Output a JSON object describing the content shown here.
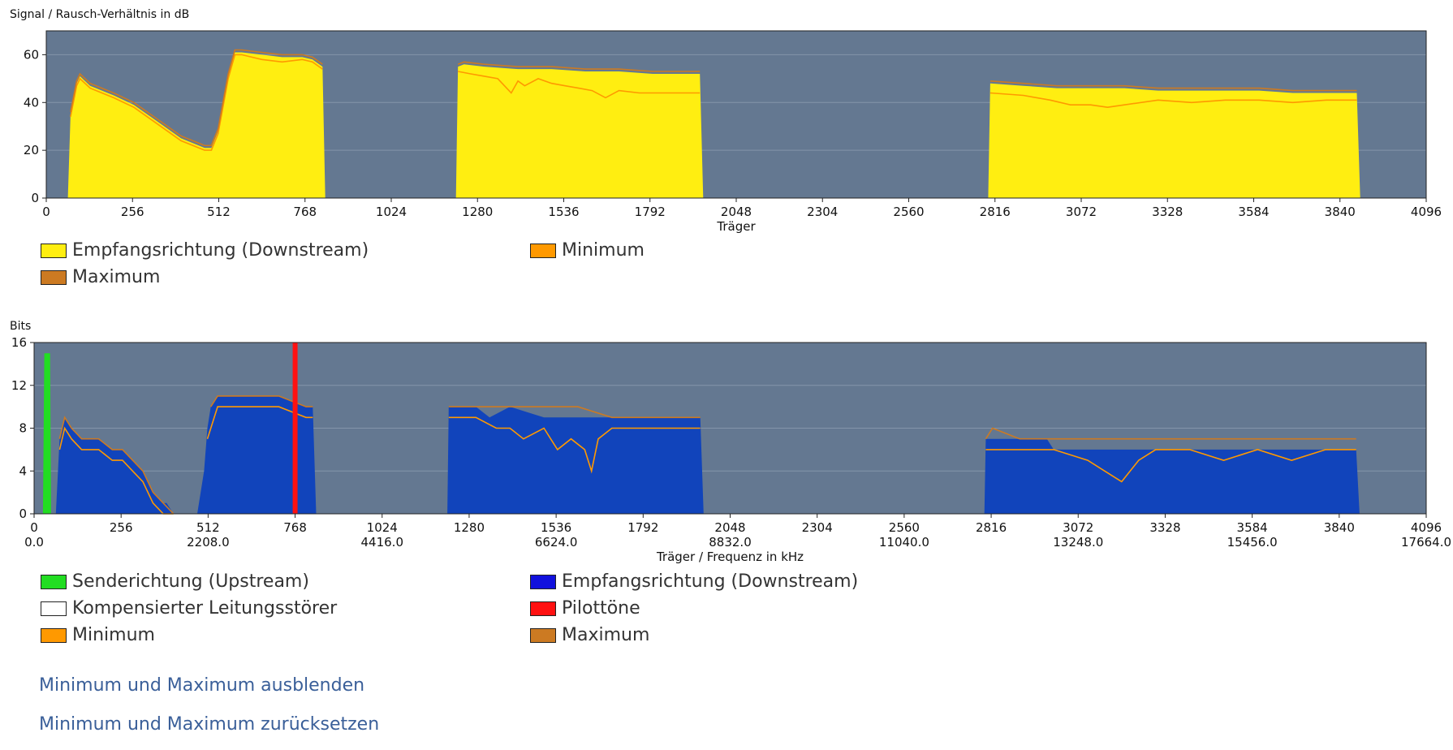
{
  "chart_data": [
    {
      "type": "area",
      "ylabel": "Signal / Rausch-Verhältnis in dB",
      "xlabel": "Träger",
      "xlim": [
        0,
        4096
      ],
      "ylim": [
        0,
        70
      ],
      "x_ticks": [
        0,
        256,
        512,
        768,
        1024,
        1280,
        1536,
        1792,
        2048,
        2304,
        2560,
        2816,
        3072,
        3328,
        3584,
        3840,
        4096
      ],
      "y_ticks": [
        0,
        20,
        40,
        60
      ],
      "grid": true,
      "series": [
        {
          "name": "Empfangsrichtung (Downstream)",
          "color": "#ffee11",
          "segments": [
            {
              "x": [
                64,
                72,
                90,
                100,
                130,
                200,
                260,
                330,
                400,
                470,
                490,
                510,
                540,
                560,
                580,
                640,
                700,
                760,
                790,
                820,
                828
              ],
              "y": [
                0,
                35,
                48,
                51,
                47,
                43,
                39,
                32,
                25,
                21,
                21,
                28,
                51,
                61,
                61,
                60,
                59,
                59,
                58,
                55,
                0
              ]
            },
            {
              "x": [
                1216,
                1222,
                1240,
                1300,
                1400,
                1500,
                1600,
                1700,
                1800,
                1940,
                1950
              ],
              "y": [
                0,
                55,
                56,
                55,
                54,
                54,
                53,
                53,
                52,
                52,
                0
              ]
            },
            {
              "x": [
                2796,
                2802,
                2900,
                3000,
                3100,
                3200,
                3300,
                3400,
                3500,
                3600,
                3700,
                3800,
                3890,
                3900
              ],
              "y": [
                0,
                48,
                47,
                46,
                46,
                46,
                45,
                45,
                45,
                45,
                44,
                44,
                44,
                0
              ]
            }
          ]
        },
        {
          "name": "Minimum",
          "color": "#ff9900",
          "segments": [
            {
              "x": [
                72,
                90,
                100,
                130,
                200,
                260,
                330,
                400,
                470,
                490,
                510,
                540,
                560,
                580,
                640,
                700,
                760,
                790,
                820
              ],
              "y": [
                34,
                47,
                50,
                46,
                42,
                38,
                31,
                24,
                20,
                20,
                27,
                50,
                60,
                60,
                58,
                57,
                58,
                57,
                54
              ]
            },
            {
              "x": [
                1222,
                1260,
                1300,
                1340,
                1380,
                1400,
                1420,
                1460,
                1500,
                1540,
                1580,
                1620,
                1660,
                1700,
                1760,
                1800,
                1940
              ],
              "y": [
                53,
                52,
                51,
                50,
                44,
                49,
                47,
                50,
                48,
                47,
                46,
                45,
                42,
                45,
                44,
                44,
                44
              ]
            },
            {
              "x": [
                2802,
                2900,
                2980,
                3040,
                3100,
                3150,
                3200,
                3300,
                3400,
                3500,
                3600,
                3700,
                3800,
                3890
              ],
              "y": [
                44,
                43,
                41,
                39,
                39,
                38,
                39,
                41,
                40,
                41,
                41,
                40,
                41,
                41
              ]
            }
          ]
        },
        {
          "name": "Maximum",
          "color": "#cc7a22",
          "segments": [
            {
              "x": [
                72,
                90,
                100,
                130,
                200,
                260,
                330,
                400,
                470,
                490,
                510,
                540,
                560,
                580,
                640,
                700,
                760,
                790,
                820
              ],
              "y": [
                36,
                49,
                52,
                48,
                44,
                40,
                33,
                26,
                22,
                22,
                29,
                52,
                62,
                62,
                61,
                60,
                60,
                59,
                56
              ]
            },
            {
              "x": [
                1222,
                1240,
                1300,
                1400,
                1500,
                1600,
                1700,
                1800,
                1940
              ],
              "y": [
                56,
                57,
                56,
                55,
                55,
                54,
                54,
                53,
                53
              ]
            },
            {
              "x": [
                2802,
                2900,
                3000,
                3100,
                3200,
                3300,
                3400,
                3500,
                3600,
                3700,
                3800,
                3890
              ],
              "y": [
                49,
                48,
                47,
                47,
                47,
                46,
                46,
                46,
                46,
                45,
                45,
                45
              ]
            }
          ]
        }
      ],
      "legend": [
        {
          "label": "Empfangsrichtung (Downstream)",
          "color": "#ffee11"
        },
        {
          "label": "Minimum",
          "color": "#ff9900"
        },
        {
          "label": "Maximum",
          "color": "#cc7a22"
        }
      ]
    },
    {
      "type": "area",
      "ylabel": "Bits",
      "xlabel": "Träger / Frequenz in kHz",
      "xlim": [
        0,
        4096
      ],
      "ylim": [
        0,
        16
      ],
      "x_ticks": [
        0,
        256,
        512,
        768,
        1024,
        1280,
        1536,
        1792,
        2048,
        2304,
        2560,
        2816,
        3072,
        3328,
        3584,
        3840,
        4096
      ],
      "x_freq_labels": [
        {
          "x": 0,
          "label": "0.0"
        },
        {
          "x": 512,
          "label": "2208.0"
        },
        {
          "x": 1024,
          "label": "4416.0"
        },
        {
          "x": 1536,
          "label": "6624.0"
        },
        {
          "x": 2048,
          "label": "8832.0"
        },
        {
          "x": 2560,
          "label": "11040.0"
        },
        {
          "x": 3072,
          "label": "13248.0"
        },
        {
          "x": 3584,
          "label": "15456.0"
        },
        {
          "x": 4096,
          "label": "17664.0"
        }
      ],
      "y_ticks": [
        0,
        4,
        8,
        12,
        16
      ],
      "grid": true,
      "series": [
        {
          "name": "Senderichtung (Upstream)",
          "color": "#22dd22",
          "segments": [
            {
              "x": [
                26,
                30,
                47,
                50
              ],
              "y": [
                0,
                15,
                15,
                0
              ]
            }
          ]
        },
        {
          "name": "Empfangsrichtung (Downstream)",
          "color": "#1144bb",
          "segments": [
            {
              "x": [
                64,
                75,
                90,
                110,
                140,
                190,
                230,
                260,
                290,
                320,
                350,
                380,
                390,
                410,
                420
              ],
              "y": [
                0,
                7,
                9,
                8,
                7,
                7,
                6,
                6,
                5,
                4,
                2,
                1,
                1,
                0,
                0
              ]
            },
            {
              "x": [
                480,
                500,
                510,
                520,
                540,
                580,
                660,
                720,
                800,
                820,
                830
              ],
              "y": [
                0,
                4,
                8,
                10,
                11,
                11,
                11,
                11,
                10,
                10,
                0
              ]
            },
            {
              "x": [
                1216,
                1220,
                1250,
                1300,
                1340,
                1400,
                1500,
                1600,
                1700,
                1760,
                1800,
                1960,
                1970
              ],
              "y": [
                0,
                10,
                10,
                10,
                9,
                10,
                9,
                9,
                9,
                9,
                9,
                9,
                0
              ]
            },
            {
              "x": [
                2796,
                2800,
                2820,
                2900,
                2980,
                3000,
                3100,
                3200,
                3300,
                3400,
                3500,
                3600,
                3700,
                3800,
                3890,
                3900
              ],
              "y": [
                0,
                7,
                7,
                7,
                7,
                6,
                6,
                6,
                6,
                6,
                6,
                6,
                6,
                6,
                6,
                0
              ]
            }
          ]
        },
        {
          "name": "Minimum",
          "color": "#ff9900",
          "segments": [
            {
              "x": [
                75,
                90,
                110,
                140,
                190,
                230,
                260,
                290,
                320,
                350,
                380,
                410
              ],
              "y": [
                6,
                8,
                7,
                6,
                6,
                5,
                5,
                4,
                3,
                1,
                0,
                0
              ]
            },
            {
              "x": [
                510,
                540,
                580,
                660,
                720,
                800,
                820
              ],
              "y": [
                7,
                10,
                10,
                10,
                10,
                9,
                9
              ]
            },
            {
              "x": [
                1220,
                1300,
                1360,
                1400,
                1440,
                1500,
                1540,
                1580,
                1620,
                1640,
                1660,
                1700,
                1800,
                1960
              ],
              "y": [
                9,
                9,
                8,
                8,
                7,
                8,
                6,
                7,
                6,
                4,
                7,
                8,
                8,
                8
              ]
            },
            {
              "x": [
                2800,
                2900,
                3000,
                3100,
                3150,
                3200,
                3250,
                3300,
                3400,
                3500,
                3600,
                3700,
                3800,
                3890
              ],
              "y": [
                6,
                6,
                6,
                5,
                4,
                3,
                5,
                6,
                6,
                5,
                6,
                5,
                6,
                6
              ]
            }
          ]
        },
        {
          "name": "Maximum",
          "color": "#cc7a22",
          "segments": [
            {
              "x": [
                75,
                90,
                110,
                140,
                190,
                230,
                260,
                290,
                320,
                350,
                380,
                410
              ],
              "y": [
                7,
                9,
                8,
                7,
                7,
                6,
                6,
                5,
                4,
                2,
                1,
                0
              ]
            },
            {
              "x": [
                520,
                540,
                580,
                660,
                720,
                800,
                820
              ],
              "y": [
                10,
                11,
                11,
                11,
                11,
                10,
                10
              ]
            },
            {
              "x": [
                1220,
                1300,
                1400,
                1500,
                1600,
                1700,
                1800,
                1960
              ],
              "y": [
                10,
                10,
                10,
                10,
                10,
                9,
                9,
                9
              ]
            },
            {
              "x": [
                2800,
                2820,
                2900,
                3000,
                3100,
                3200,
                3300,
                3400,
                3500,
                3600,
                3700,
                3800,
                3890
              ],
              "y": [
                7,
                8,
                7,
                7,
                7,
                7,
                7,
                7,
                7,
                7,
                7,
                7,
                7
              ]
            }
          ]
        },
        {
          "name": "Pilottöne",
          "color": "#ff1111",
          "bars": [
            {
              "x": 768,
              "y": 16
            }
          ]
        }
      ],
      "legend": [
        {
          "label": "Senderichtung (Upstream)",
          "color": "#22dd22"
        },
        {
          "label": "Empfangsrichtung (Downstream)",
          "color": "#1111dd"
        },
        {
          "label": "Kompensierter Leitungsstörer",
          "color": "#ffffff"
        },
        {
          "label": "Pilottöne",
          "color": "#ff1111"
        },
        {
          "label": "Minimum",
          "color": "#ff9900"
        },
        {
          "label": "Maximum",
          "color": "#cc7a22"
        }
      ]
    }
  ],
  "links": {
    "hide_minmax": "Minimum und Maximum ausblenden",
    "reset_minmax": "Minimum und Maximum zurücksetzen"
  },
  "colors": {
    "plot_bg": "#647891",
    "grid": "#8495aa",
    "link": "#3a5f99"
  }
}
